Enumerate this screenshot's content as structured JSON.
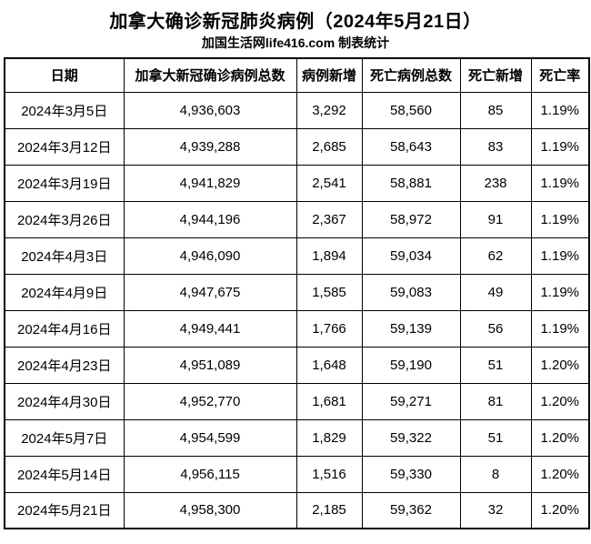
{
  "header": {
    "title": "加拿大确诊新冠肺炎病例（2024年5月21日）",
    "subtitle": "加国生活网life416.com 制表统计"
  },
  "chart_data": {
    "type": "table",
    "title": "加拿大确诊新冠肺炎病例（2024年5月21日）",
    "subtitle": "加国生活网life416.com 制表统计",
    "columns": [
      {
        "key": "date",
        "label": "日期"
      },
      {
        "key": "total-cases",
        "label": "加拿大新冠确诊病例总数"
      },
      {
        "key": "new-cases",
        "label": "病例新增"
      },
      {
        "key": "total-deaths",
        "label": "死亡病例总数"
      },
      {
        "key": "new-deaths",
        "label": "死亡新增"
      },
      {
        "key": "death-rate",
        "label": "死亡率"
      }
    ],
    "rows": [
      [
        "2024年3月5日",
        "4,936,603",
        "3,292",
        "58,560",
        "85",
        "1.19%"
      ],
      [
        "2024年3月12日",
        "4,939,288",
        "2,685",
        "58,643",
        "83",
        "1.19%"
      ],
      [
        "2024年3月19日",
        "4,941,829",
        "2,541",
        "58,881",
        "238",
        "1.19%"
      ],
      [
        "2024年3月26日",
        "4,944,196",
        "2,367",
        "58,972",
        "91",
        "1.19%"
      ],
      [
        "2024年4月3日",
        "4,946,090",
        "1,894",
        "59,034",
        "62",
        "1.19%"
      ],
      [
        "2024年4月9日",
        "4,947,675",
        "1,585",
        "59,083",
        "49",
        "1.19%"
      ],
      [
        "2024年4月16日",
        "4,949,441",
        "1,766",
        "59,139",
        "56",
        "1.19%"
      ],
      [
        "2024年4月23日",
        "4,951,089",
        "1,648",
        "59,190",
        "51",
        "1.20%"
      ],
      [
        "2024年4月30日",
        "4,952,770",
        "1,681",
        "59,271",
        "81",
        "1.20%"
      ],
      [
        "2024年5月7日",
        "4,954,599",
        "1,829",
        "59,322",
        "51",
        "1.20%"
      ],
      [
        "2024年5月14日",
        "4,956,115",
        "1,516",
        "59,330",
        "8",
        "1.20%"
      ],
      [
        "2024年5月21日",
        "4,958,300",
        "2,185",
        "59,362",
        "32",
        "1.20%"
      ]
    ],
    "series": [
      {
        "name": "加拿大新冠确诊病例总数",
        "values": [
          4936603,
          4939288,
          4941829,
          4944196,
          4946090,
          4947675,
          4949441,
          4951089,
          4952770,
          4954599,
          4956115,
          4958300
        ]
      },
      {
        "name": "病例新增",
        "values": [
          3292,
          2685,
          2541,
          2367,
          1894,
          1585,
          1766,
          1648,
          1681,
          1829,
          1516,
          2185
        ]
      },
      {
        "name": "死亡病例总数",
        "values": [
          58560,
          58643,
          58881,
          58972,
          59034,
          59083,
          59139,
          59190,
          59271,
          59322,
          59330,
          59362
        ]
      },
      {
        "name": "死亡新增",
        "values": [
          85,
          83,
          238,
          91,
          62,
          49,
          56,
          51,
          81,
          51,
          8,
          32
        ]
      },
      {
        "name": "死亡率",
        "values": [
          "1.19%",
          "1.19%",
          "1.19%",
          "1.19%",
          "1.19%",
          "1.19%",
          "1.19%",
          "1.20%",
          "1.20%",
          "1.20%",
          "1.20%",
          "1.20%"
        ]
      }
    ]
  },
  "colors": {
    "text": "#000000",
    "border": "#000000",
    "background": "#ffffff"
  }
}
